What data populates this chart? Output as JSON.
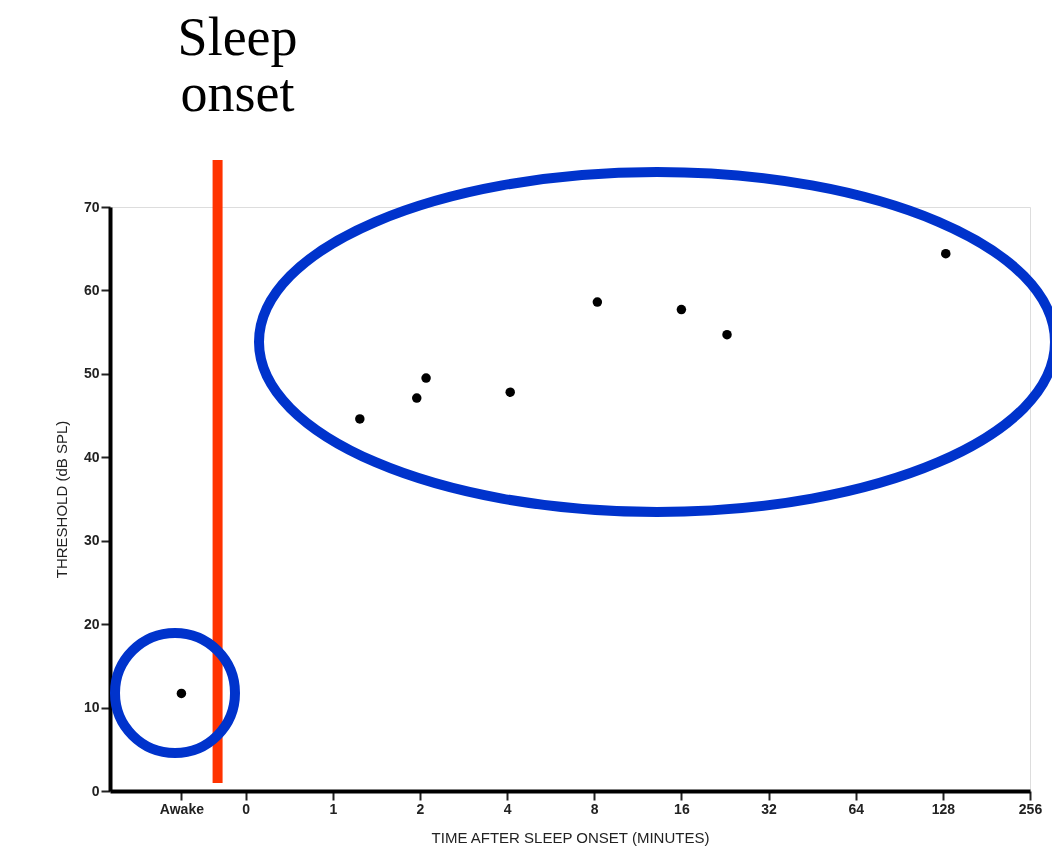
{
  "chart_data": {
    "type": "scatter",
    "xlabel": "TIME AFTER SLEEP ONSET (MINUTES)",
    "ylabel": "THRESHOLD (dB SPL)",
    "log": "x",
    "xlim": [
      0.17,
      256
    ],
    "xticks": [
      {
        "value": 0.3,
        "label": "Awake"
      },
      {
        "value": 0.5,
        "label": "0"
      },
      1,
      2,
      4,
      8,
      16,
      32,
      64,
      128,
      256
    ],
    "ylim": [
      0,
      70
    ],
    "yticks": [
      0,
      10,
      20,
      30,
      40,
      50,
      60,
      70
    ],
    "grid": false,
    "marker": "circle",
    "series": [
      {
        "color": "#000000",
        "x": [
          0.3,
          1.24,
          2.1,
          4.1,
          8.2,
          16,
          23,
          131
        ],
        "values": [
          11.7,
          44.6,
          49.5,
          47.8,
          58.6,
          57.7,
          54.7,
          64.4
        ]
      },
      {
        "color": "#000000",
        "x": [
          1.95
        ],
        "values": [
          47.1
        ]
      }
    ],
    "ref_lines": [
      {
        "axis": "x",
        "value": 0.4,
        "label": "Sleep onset",
        "color": "#ff3300"
      }
    ]
  }
}
